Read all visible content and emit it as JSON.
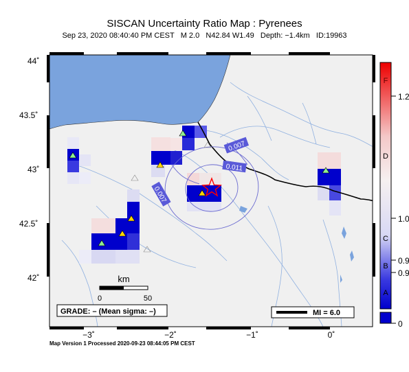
{
  "title": "SISCAN Uncertainty Ratio Map : Pyrenees",
  "subtitle": {
    "date": "Sep 23, 2020 08:40:40 PM CEST",
    "magnitude": "M 2.0",
    "location": "N42.84 W1.49",
    "depth": "Depth: −1.4km",
    "event_id": "ID:19963"
  },
  "axes": {
    "lat_labels": [
      "44˚",
      "43.5˚",
      "43˚",
      "42.5˚",
      "42˚"
    ],
    "lat_values": [
      44,
      43.5,
      43,
      42.5,
      42
    ],
    "lon_labels": [
      "−3˚",
      "−2˚",
      "−1˚",
      "0˚"
    ],
    "lon_values": [
      -3,
      -2,
      -1,
      0
    ]
  },
  "scalebar": {
    "unit": "km",
    "tick_start": "0",
    "tick_end": "50"
  },
  "grade_box": "GRADE: – (Mean sigma: –)",
  "mi_legend": "MI = 6.0",
  "contour_labels": [
    "0.007",
    "0.011",
    "0.007"
  ],
  "colorbar": {
    "letters": [
      "F",
      "D",
      "C",
      "B",
      "A"
    ],
    "values": [
      "1.2",
      "1.0",
      "0.9",
      "0.9",
      "0"
    ]
  },
  "footer": "Map Version 1 Processed 2020-09-23 08:44:05 PM CEST",
  "colors": {
    "ocean": "#7aa3dd",
    "land": "#f0f0f0",
    "high_uncertainty": "#0000cc",
    "epicenter": "#ff0000",
    "station": "#90ee90"
  }
}
